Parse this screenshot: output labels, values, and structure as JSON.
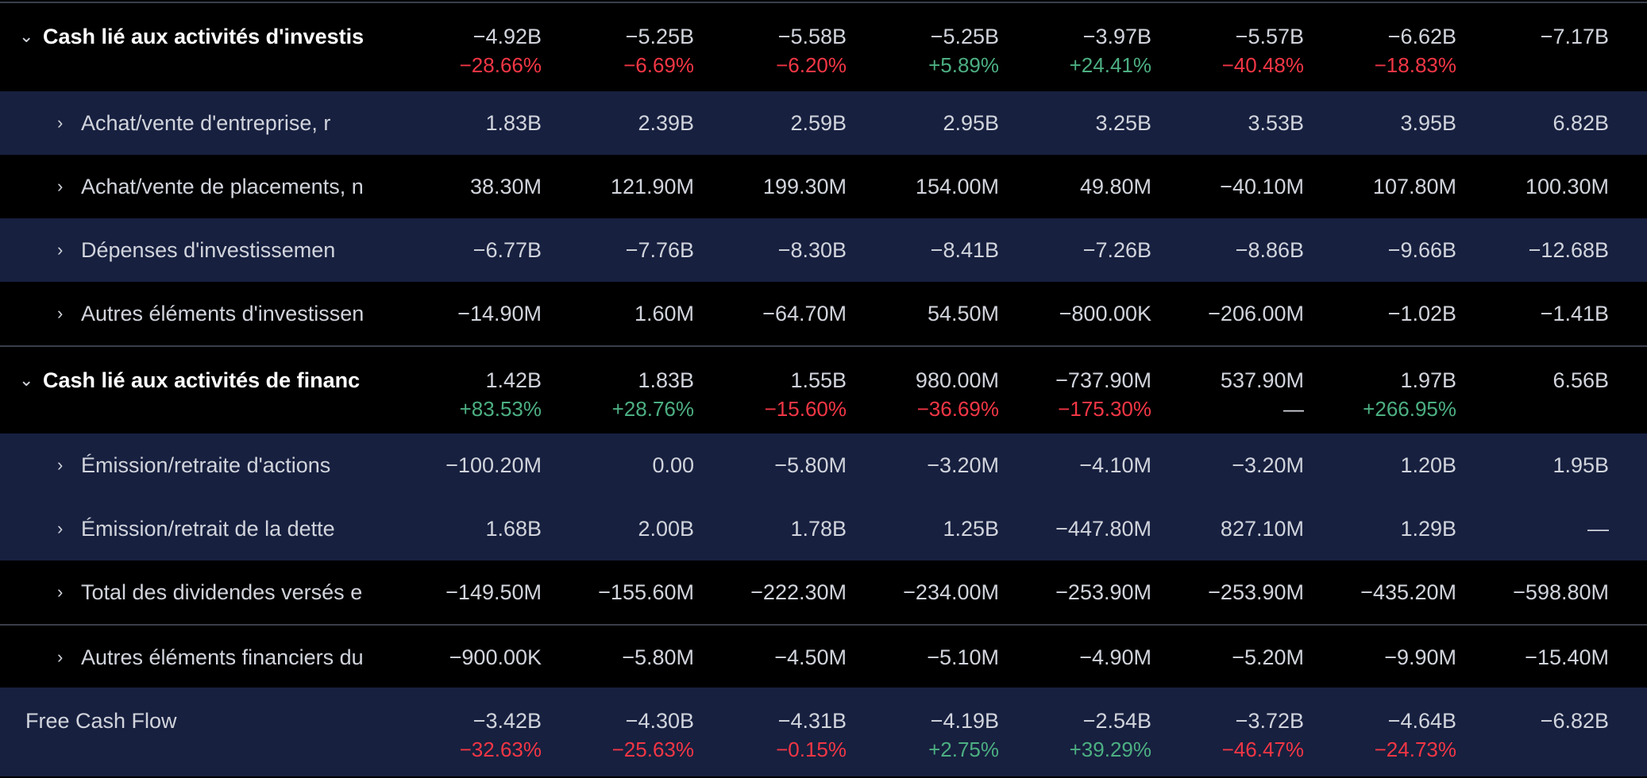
{
  "colors": {
    "background": "#000000",
    "band": "#17203f",
    "text": "#d1d4dc",
    "negative": "#f23645",
    "positive": "#4caf82"
  },
  "rows": [
    {
      "label": "Cash lié aux activités d'investis",
      "type": "section",
      "values": [
        "−4.92B",
        "−5.25B",
        "−5.58B",
        "−5.25B",
        "−3.97B",
        "−5.57B",
        "−6.62B",
        "−7.17B"
      ],
      "changes": [
        "−28.66%",
        "−6.69%",
        "−6.20%",
        "+5.89%",
        "+24.41%",
        "−40.48%",
        "−18.83%",
        ""
      ]
    },
    {
      "label": "Achat/vente d'entreprise, r",
      "type": "child",
      "values": [
        "1.83B",
        "2.39B",
        "2.59B",
        "2.95B",
        "3.25B",
        "3.53B",
        "3.95B",
        "6.82B"
      ]
    },
    {
      "label": "Achat/vente de placements, n",
      "type": "child",
      "values": [
        "38.30M",
        "121.90M",
        "199.30M",
        "154.00M",
        "49.80M",
        "−40.10M",
        "107.80M",
        "100.30M"
      ]
    },
    {
      "label": "Dépenses d'investissemen",
      "type": "child",
      "values": [
        "−6.77B",
        "−7.76B",
        "−8.30B",
        "−8.41B",
        "−7.26B",
        "−8.86B",
        "−9.66B",
        "−12.68B"
      ]
    },
    {
      "label": "Autres éléments d'investissen",
      "type": "child",
      "values": [
        "−14.90M",
        "1.60M",
        "−64.70M",
        "54.50M",
        "−800.00K",
        "−206.00M",
        "−1.02B",
        "−1.41B"
      ]
    },
    {
      "label": "Cash lié aux activités de financ",
      "type": "section",
      "values": [
        "1.42B",
        "1.83B",
        "1.55B",
        "980.00M",
        "−737.90M",
        "537.90M",
        "1.97B",
        "6.56B"
      ],
      "changes": [
        "+83.53%",
        "+28.76%",
        "−15.60%",
        "−36.69%",
        "−175.30%",
        "—",
        "+266.95%",
        ""
      ]
    },
    {
      "label": "Émission/retraite d'actions",
      "type": "child",
      "values": [
        "−100.20M",
        "0.00",
        "−5.80M",
        "−3.20M",
        "−4.10M",
        "−3.20M",
        "1.20B",
        "1.95B"
      ]
    },
    {
      "label": "Émission/retrait de la dette",
      "type": "child",
      "values": [
        "1.68B",
        "2.00B",
        "1.78B",
        "1.25B",
        "−447.80M",
        "827.10M",
        "1.29B",
        "—"
      ]
    },
    {
      "label": "Total des dividendes versés e",
      "type": "child",
      "values": [
        "−149.50M",
        "−155.60M",
        "−222.30M",
        "−234.00M",
        "−253.90M",
        "−253.90M",
        "−435.20M",
        "−598.80M"
      ]
    },
    {
      "label": "Autres éléments financiers du",
      "type": "child",
      "values": [
        "−900.00K",
        "−5.80M",
        "−4.50M",
        "−5.10M",
        "−4.90M",
        "−5.20M",
        "−9.90M",
        "−15.40M"
      ]
    },
    {
      "label": "Free Cash Flow",
      "type": "plain",
      "values": [
        "−3.42B",
        "−4.30B",
        "−4.31B",
        "−4.19B",
        "−2.54B",
        "−3.72B",
        "−4.64B",
        "−6.82B"
      ],
      "changes": [
        "−32.63%",
        "−25.63%",
        "−0.15%",
        "+2.75%",
        "+39.29%",
        "−46.47%",
        "−24.73%",
        ""
      ]
    }
  ]
}
